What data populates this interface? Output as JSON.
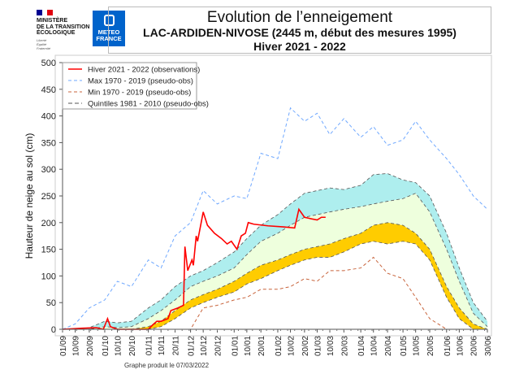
{
  "header": {
    "ministry_lines": [
      "MINISTÈRE",
      "DE LA TRANSITION",
      "ÉCOLOGIQUE"
    ],
    "motto": [
      "Liberté",
      "Égalité",
      "Fraternité"
    ],
    "meteo_logo": [
      "METEO",
      "FRANCE"
    ],
    "title": "Evolution de l’enneigement",
    "subtitle": "LAC-ARDIDEN-NIVOSE (2445 m, début des mesures 1995)",
    "season": "Hiver 2021 - 2022"
  },
  "footer": "Graphe produit le 07/03/2022",
  "colors": {
    "obs": "#ff0000",
    "max": "#6fa8ff",
    "min": "#c8643c",
    "quint": "#555555",
    "band_low": "#ffcc00",
    "band_mid": "#eeffdd",
    "band_high": "#aeeeee"
  },
  "chart_data": {
    "type": "line",
    "xlabel": "",
    "ylabel": "Hauteur de neige au sol (cm)",
    "ylim": [
      0,
      500
    ],
    "yticks": [
      0,
      50,
      100,
      150,
      200,
      250,
      300,
      350,
      400,
      450,
      500
    ],
    "xticks": [
      "01/09",
      "10/09",
      "20/09",
      "01/10",
      "10/10",
      "20/10",
      "01/11",
      "10/11",
      "20/11",
      "01/12",
      "10/12",
      "20/12",
      "01/01",
      "10/01",
      "20/01",
      "01/02",
      "10/02",
      "20/02",
      "01/03",
      "10/03",
      "20/03",
      "01/04",
      "10/04",
      "20/04",
      "01/05",
      "10/05",
      "20/05",
      "01/06",
      "10/06",
      "20/06",
      "30/06"
    ],
    "legend": [
      "Hiver 2021 - 2022 (observations)",
      "Max 1970 - 2019 (pseudo-obs)",
      "Min 1970 - 2019 (pseudo-obs)",
      "Quintiles 1981 - 2010 (pseudo-obs)"
    ],
    "legend_position": "top-left",
    "series": {
      "max": [
        0,
        10,
        40,
        55,
        90,
        80,
        130,
        115,
        175,
        200,
        260,
        235,
        250,
        245,
        330,
        320,
        415,
        390,
        405,
        365,
        395,
        360,
        380,
        345,
        355,
        390,
        355,
        320,
        290,
        250,
        225
      ],
      "min": [
        0,
        0,
        0,
        0,
        0,
        0,
        0,
        0,
        0,
        0,
        40,
        45,
        55,
        60,
        75,
        75,
        80,
        95,
        90,
        110,
        110,
        115,
        135,
        105,
        95,
        60,
        20,
        0,
        0,
        0,
        0
      ],
      "q80": [
        0,
        0,
        3,
        15,
        12,
        15,
        40,
        55,
        80,
        100,
        110,
        125,
        145,
        170,
        195,
        215,
        235,
        255,
        260,
        265,
        262,
        270,
        290,
        292,
        280,
        275,
        250,
        180,
        115,
        50,
        15
      ],
      "q60": [
        0,
        0,
        0,
        5,
        3,
        5,
        20,
        35,
        55,
        80,
        90,
        100,
        115,
        140,
        165,
        180,
        195,
        210,
        215,
        220,
        225,
        230,
        235,
        240,
        245,
        255,
        220,
        150,
        90,
        30,
        5
      ],
      "q40": [
        0,
        0,
        0,
        0,
        0,
        0,
        5,
        15,
        35,
        55,
        65,
        75,
        90,
        105,
        120,
        130,
        140,
        150,
        155,
        160,
        170,
        180,
        195,
        200,
        195,
        180,
        150,
        80,
        40,
        10,
        0
      ],
      "q20": [
        0,
        0,
        0,
        0,
        0,
        0,
        0,
        5,
        20,
        40,
        50,
        60,
        70,
        85,
        95,
        110,
        120,
        130,
        135,
        135,
        145,
        160,
        165,
        160,
        165,
        160,
        130,
        60,
        20,
        0,
        0
      ],
      "observations": [
        [
          "01/09",
          0
        ],
        [
          "15/09",
          2
        ],
        [
          "25/09",
          3
        ],
        [
          "30/09",
          0
        ],
        [
          "03/10",
          20
        ],
        [
          "05/10",
          5
        ],
        [
          "10/10",
          0
        ],
        [
          "01/11",
          0
        ],
        [
          "04/11",
          8
        ],
        [
          "07/11",
          15
        ],
        [
          "10/11",
          15
        ],
        [
          "15/11",
          20
        ],
        [
          "17/11",
          35
        ],
        [
          "22/11",
          40
        ],
        [
          "26/11",
          45
        ],
        [
          "27/11",
          155
        ],
        [
          "29/11",
          110
        ],
        [
          "02/12",
          130
        ],
        [
          "03/12",
          120
        ],
        [
          "05/12",
          175
        ],
        [
          "06/12",
          165
        ],
        [
          "10/12",
          220
        ],
        [
          "13/12",
          195
        ],
        [
          "18/12",
          180
        ],
        [
          "23/12",
          170
        ],
        [
          "27/12",
          160
        ],
        [
          "30/12",
          165
        ],
        [
          "03/01",
          150
        ],
        [
          "06/01",
          175
        ],
        [
          "09/01",
          180
        ],
        [
          "11/01",
          200
        ],
        [
          "15/01",
          197
        ],
        [
          "25/01",
          194
        ],
        [
          "05/02",
          192
        ],
        [
          "13/02",
          190
        ],
        [
          "16/02",
          225
        ],
        [
          "20/02",
          210
        ],
        [
          "25/02",
          207
        ],
        [
          "01/03",
          205
        ],
        [
          "04/03",
          210
        ],
        [
          "07/03",
          210
        ]
      ]
    }
  }
}
